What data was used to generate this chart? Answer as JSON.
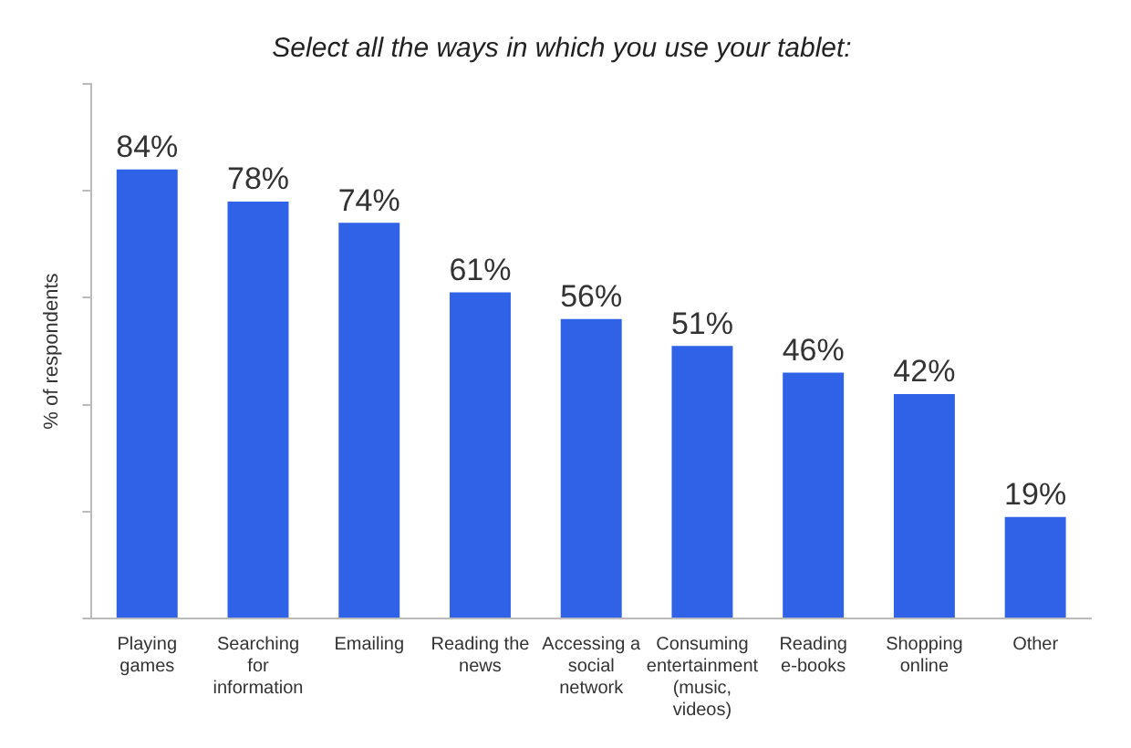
{
  "chart_data": {
    "type": "bar",
    "title": "Select all the ways in which you use your tablet:",
    "ylabel": "% of respondents",
    "categories": [
      "Playing games",
      "Searching for information",
      "Emailing",
      "Reading the news",
      "Accessing a social network",
      "Consuming entertainment (music, videos)",
      "Reading e-books",
      "Shopping online",
      "Other"
    ],
    "values": [
      84,
      78,
      74,
      61,
      56,
      51,
      46,
      42,
      19
    ],
    "value_labels": [
      "84%",
      "78%",
      "74%",
      "61%",
      "56%",
      "51%",
      "46%",
      "42%",
      "19%"
    ],
    "color": "#2f62e6",
    "ylim": [
      0,
      100
    ],
    "yticks": [
      {
        "value": 0,
        "label": null
      },
      {
        "value": 20,
        "label": null
      },
      {
        "value": 40,
        "label": null
      },
      {
        "value": 60,
        "label": null
      },
      {
        "value": 80,
        "label": null
      },
      {
        "value": 100,
        "label": null
      }
    ],
    "grid": false,
    "legend": false
  }
}
